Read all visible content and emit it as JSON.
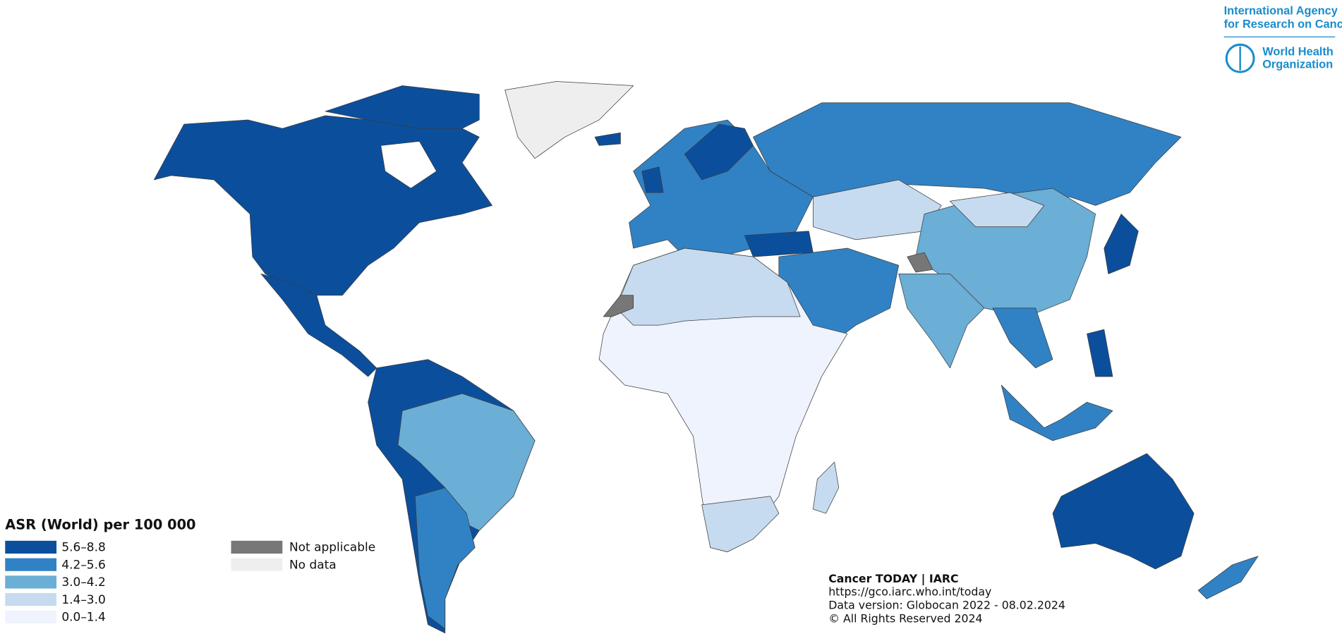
{
  "map": {
    "legend": {
      "title": "ASR (World) per 100 000",
      "items": [
        {
          "label": "5.6–8.8",
          "color": "#0b4f9c"
        },
        {
          "label": "4.2–5.6",
          "color": "#3182c4"
        },
        {
          "label": "3.0–4.2",
          "color": "#6baed6"
        },
        {
          "label": "1.4–3.0",
          "color": "#c6dbef"
        },
        {
          "label": "0.0–1.4",
          "color": "#eef3fd"
        }
      ],
      "other": [
        {
          "label": "Not applicable",
          "color": "#777777"
        },
        {
          "label": "No data",
          "color": "#eeeeee"
        }
      ]
    },
    "credits": [
      "Cancer TODAY | IARC",
      "https://gco.iarc.who.int/today",
      "Data version: Globocan 2022 - 08.02.2024",
      "© All Rights Reserved 2024"
    ],
    "logos": {
      "iarc": [
        "International Agency",
        "for Research on Cancer"
      ],
      "who": [
        "World Health",
        "Organization"
      ]
    }
  }
}
